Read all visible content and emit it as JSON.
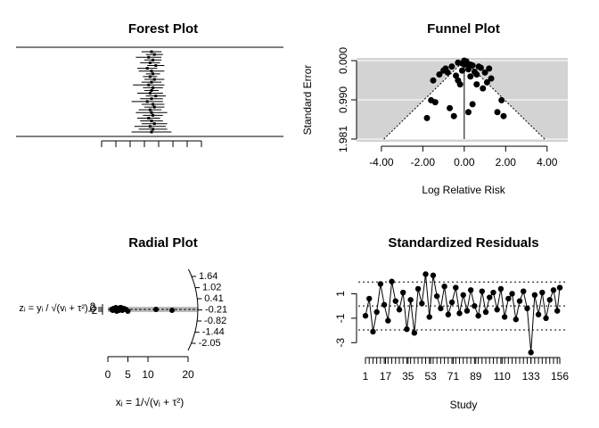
{
  "chart_data": [
    {
      "type": "forest",
      "title": "Forest Plot",
      "estimates": [
        -0.5,
        -0.3,
        -0.7,
        -0.4,
        -0.6,
        -0.2,
        -0.8,
        -0.5,
        -0.4,
        -0.6,
        -0.3,
        -0.5,
        -0.7,
        -0.4,
        -0.5,
        -0.6,
        -0.2,
        -0.5,
        -0.8,
        -0.4,
        -0.3,
        -0.6,
        -0.5,
        -0.4,
        -0.7,
        -0.5,
        -0.3,
        -0.6,
        -0.4,
        -0.5
      ],
      "ci_lower": [
        -1.2,
        -0.9,
        -1.6,
        -1.0,
        -1.3,
        -0.8,
        -1.5,
        -1.4,
        -0.9,
        -1.1,
        -1.0,
        -1.2,
        -1.8,
        -1.1,
        -1.0,
        -1.5,
        -0.9,
        -1.3,
        -1.9,
        -1.2,
        -1.0,
        -1.4,
        -1.6,
        -1.1,
        -1.5,
        -1.3,
        -1.2,
        -1.7,
        -1.4,
        -1.9
      ],
      "ci_upper": [
        0.2,
        0.3,
        0.2,
        0.2,
        0.1,
        0.4,
        -0.1,
        0.4,
        0.1,
        -0.1,
        0.4,
        0.2,
        0.4,
        0.3,
        0.0,
        0.3,
        0.5,
        0.3,
        0.3,
        0.4,
        0.4,
        0.2,
        0.6,
        0.3,
        0.1,
        0.3,
        0.6,
        0.5,
        0.6,
        0.9
      ],
      "xlim": [
        -4,
        3
      ],
      "xticks": [
        -4,
        -3,
        -2,
        -1,
        0,
        1,
        2,
        3
      ]
    },
    {
      "type": "funnel",
      "title": "Funnel Plot",
      "x_label": "Log Relative Risk",
      "y_label": "Standard Error",
      "x": [
        -0.3,
        0.1,
        0.4,
        -0.6,
        0.8,
        -0.9,
        0.2,
        -0.1,
        0.5,
        1.0,
        -1.2,
        0.6,
        -0.4,
        0.3,
        1.3,
        -1.5,
        0.0,
        0.7,
        -0.8,
        1.1,
        -0.2,
        0.9,
        -1.6,
        1.8,
        -1.4,
        0.4,
        -0.7,
        1.6,
        0.2,
        -0.5,
        1.9,
        -1.8,
        -0.3,
        0.6,
        1.2,
        -1.0,
        0.1,
        0.0,
        -0.1,
        0.3
      ],
      "values": [
        0.05,
        0.08,
        0.12,
        0.15,
        0.18,
        0.2,
        0.22,
        0.25,
        0.28,
        0.3,
        0.35,
        0.35,
        0.38,
        0.4,
        0.45,
        0.5,
        0.1,
        0.15,
        0.3,
        0.55,
        0.6,
        0.7,
        1.0,
        1.0,
        1.05,
        1.1,
        1.2,
        1.3,
        1.3,
        1.4,
        1.4,
        1.45,
        0.5,
        0.6,
        0.2,
        0.25,
        0.02,
        0.0,
        0.07,
        0.1
      ],
      "center": 0,
      "funnel_z": 1.96,
      "xlim": [
        -5.2,
        5
      ],
      "ylim": [
        0,
        1.981
      ],
      "y_inverted": true,
      "xticks": [
        {
          "value": -4,
          "label": "-4.00"
        },
        {
          "value": -2,
          "label": "-2.00"
        },
        {
          "value": 0,
          "label": "0.00"
        },
        {
          "value": 2,
          "label": "2.00"
        },
        {
          "value": 4,
          "label": "4.00"
        }
      ],
      "yticks": [
        {
          "value": 0,
          "label": "0.000"
        },
        {
          "value": 0.99,
          "label": "0.990"
        },
        {
          "value": 1.981,
          "label": "1.981"
        }
      ],
      "grid": true
    },
    {
      "type": "radial",
      "title": "Radial Plot",
      "x_label": "xᵢ = 1/√(vᵢ + τ²)",
      "y_label": "zᵢ = yᵢ / √(vᵢ + τ²)",
      "x": [
        1.2,
        1.5,
        1.8,
        2.0,
        2.2,
        2.5,
        2.8,
        3.0,
        3.3,
        3.6,
        4.0,
        4.5,
        5.0,
        1.0,
        1.4,
        2.4,
        3.1,
        12,
        16
      ],
      "values": [
        -1,
        1,
        0,
        2,
        -2,
        1,
        -1,
        0,
        2,
        -1,
        1,
        0,
        -2,
        0,
        1,
        -1,
        2,
        0,
        -1
      ],
      "xlim": [
        0,
        20
      ],
      "xticks": [
        0,
        5,
        10,
        20
      ],
      "ylim": [
        -6,
        6
      ],
      "yticks": [
        -2,
        0,
        2
      ],
      "arc_ticks": [
        1.64,
        1.02,
        0.41,
        -0.21,
        -0.82,
        -1.44,
        -2.05
      ]
    },
    {
      "type": "residuals",
      "title": "Standardized Residuals",
      "x_label": "Study",
      "x": [
        1,
        4,
        7,
        10,
        13,
        16,
        19,
        22,
        25,
        28,
        31,
        34,
        37,
        40,
        43,
        46,
        49,
        52,
        55,
        58,
        61,
        64,
        67,
        70,
        73,
        76,
        79,
        82,
        85,
        88,
        91,
        94,
        97,
        100,
        103,
        106,
        109,
        112,
        115,
        118,
        121,
        124,
        127,
        130,
        133,
        136,
        139,
        142,
        145,
        148,
        151,
        154,
        156
      ],
      "values": [
        -0.8,
        0.6,
        -2.1,
        -0.5,
        1.8,
        0.1,
        -1.2,
        2.0,
        0.4,
        -0.3,
        1.1,
        -1.9,
        0.5,
        -2.2,
        1.4,
        0.2,
        2.6,
        -0.9,
        2.5,
        0.8,
        -0.2,
        1.6,
        -0.7,
        0.3,
        1.5,
        -0.6,
        0.9,
        -0.4,
        1.3,
        0.0,
        -0.8,
        1.2,
        -0.5,
        0.7,
        1.1,
        -0.3,
        1.4,
        -0.9,
        0.6,
        1.0,
        -1.1,
        0.4,
        1.2,
        -0.2,
        -3.8,
        0.9,
        -0.7,
        1.1,
        -1.0,
        0.5,
        1.3,
        -0.4,
        1.5
      ],
      "ref_lines": [
        -1.96,
        0,
        1.96
      ],
      "xlim": [
        1,
        156
      ],
      "xticks": [
        1,
        17,
        35,
        53,
        71,
        89,
        110,
        133,
        156
      ],
      "ylim": [
        -4,
        3
      ],
      "yticks": [
        -3,
        -1,
        1
      ]
    }
  ]
}
